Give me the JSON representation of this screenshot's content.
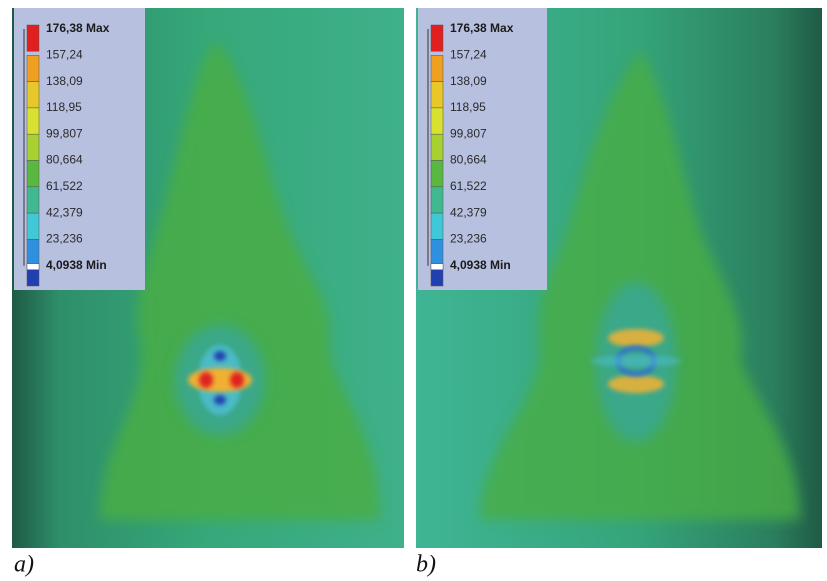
{
  "panels": [
    {
      "caption": "a)",
      "legend": [
        "176,38 Max",
        "157,24",
        "138,09",
        "118,95",
        "99,807",
        "80,664",
        "61,522",
        "42,379",
        "23,236",
        "4,0938 Min"
      ]
    },
    {
      "caption": "b)",
      "legend": [
        "176,38 Max",
        "157,24",
        "138,09",
        "118,95",
        "99,807",
        "80,664",
        "61,522",
        "42,379",
        "23,236",
        "4,0938 Min"
      ]
    }
  ]
}
